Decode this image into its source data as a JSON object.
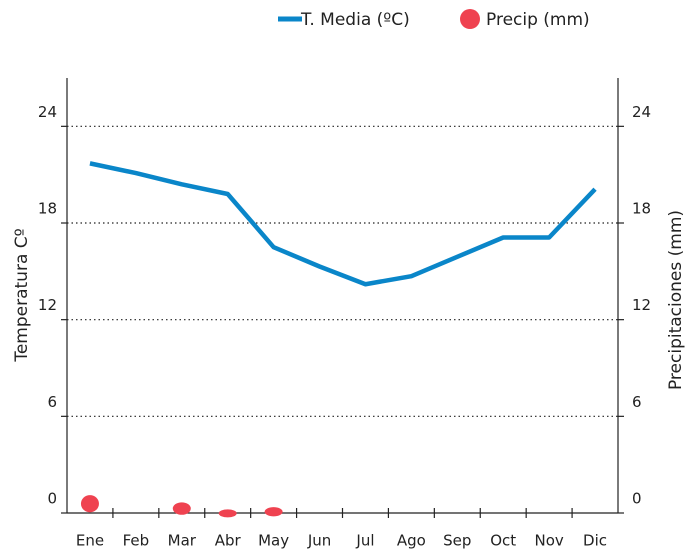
{
  "chart_data": {
    "type": "line",
    "categories": [
      "Ene",
      "Feb",
      "Mar",
      "Abr",
      "May",
      "Jun",
      "Jul",
      "Ago",
      "Sep",
      "Oct",
      "Nov",
      "Dic"
    ],
    "series": [
      {
        "name": "T. Media (ºC)",
        "color": "#0a86c9",
        "values": [
          21.7,
          21.1,
          20.4,
          19.8,
          16.5,
          15.3,
          14.2,
          14.7,
          15.9,
          17.1,
          17.1,
          20.1
        ]
      },
      {
        "name": "Precip (mm)",
        "color": "#ef4250",
        "axis": "y2",
        "values": [
          0.7,
          null,
          0.4,
          0.1,
          0.2,
          null,
          null,
          null,
          null,
          null,
          null,
          null
        ]
      }
    ],
    "ylabel": "Temperatura Cº",
    "y2label": "Precipitaciones (mm)",
    "ylim": [
      0,
      27
    ],
    "yticks": [
      0,
      6,
      12,
      18,
      24
    ],
    "y2lim": [
      0,
      27
    ],
    "y2ticks": [
      0,
      6,
      12,
      18,
      24
    ],
    "grid": true,
    "legend": "top"
  }
}
